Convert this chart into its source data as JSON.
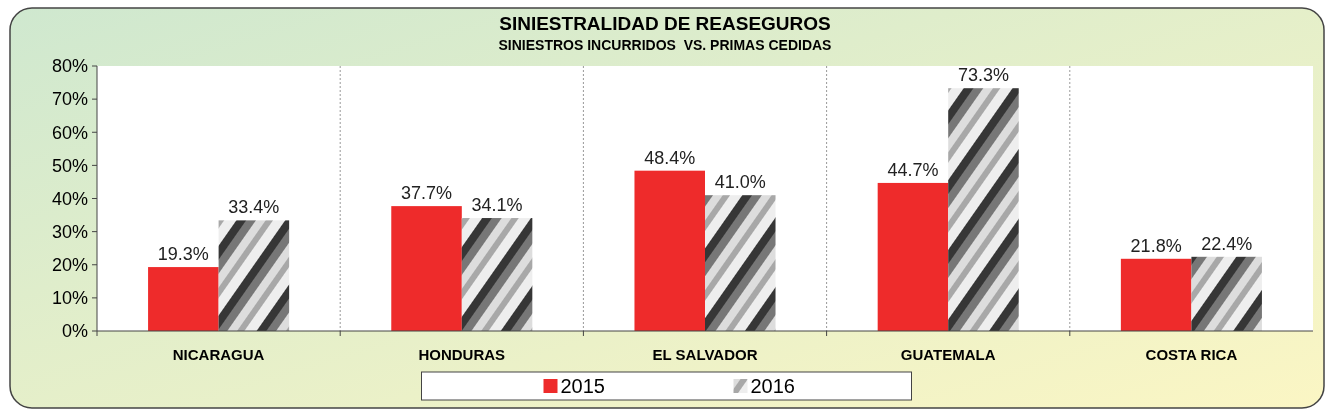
{
  "chart_data": {
    "type": "bar",
    "title": "SINIESTRALIDAD DE REASEGUROS",
    "subtitle": "SINIESTROS INCURRIDOS  VS. PRIMAS CEDIDAS",
    "categories": [
      "NICARAGUA",
      "HONDURAS",
      "EL SALVADOR",
      "GUATEMALA",
      "COSTA RICA"
    ],
    "series": [
      {
        "name": "2015",
        "color": "#ee2b2b",
        "values": [
          19.3,
          37.7,
          48.4,
          44.7,
          21.8
        ],
        "value_labels": [
          "19.3%",
          "37.7%",
          "48.4%",
          "44.7%",
          "21.8%"
        ]
      },
      {
        "name": "2016",
        "color": "#a8a8a8",
        "values": [
          33.4,
          34.1,
          41.0,
          73.3,
          22.4
        ],
        "value_labels": [
          "33.4%",
          "34.1%",
          "41.0%",
          "73.3%",
          "22.4%"
        ]
      }
    ],
    "ylim": [
      0,
      80
    ],
    "yticks": [
      {
        "value": 0,
        "label": "0%"
      },
      {
        "value": 10,
        "label": "10%"
      },
      {
        "value": 20,
        "label": "20%"
      },
      {
        "value": 30,
        "label": "30%"
      },
      {
        "value": 40,
        "label": "40%"
      },
      {
        "value": 50,
        "label": "50%"
      },
      {
        "value": 60,
        "label": "60%"
      },
      {
        "value": 70,
        "label": "70%"
      },
      {
        "value": 80,
        "label": "80%"
      }
    ],
    "grid": "x",
    "legend": "bottom"
  }
}
